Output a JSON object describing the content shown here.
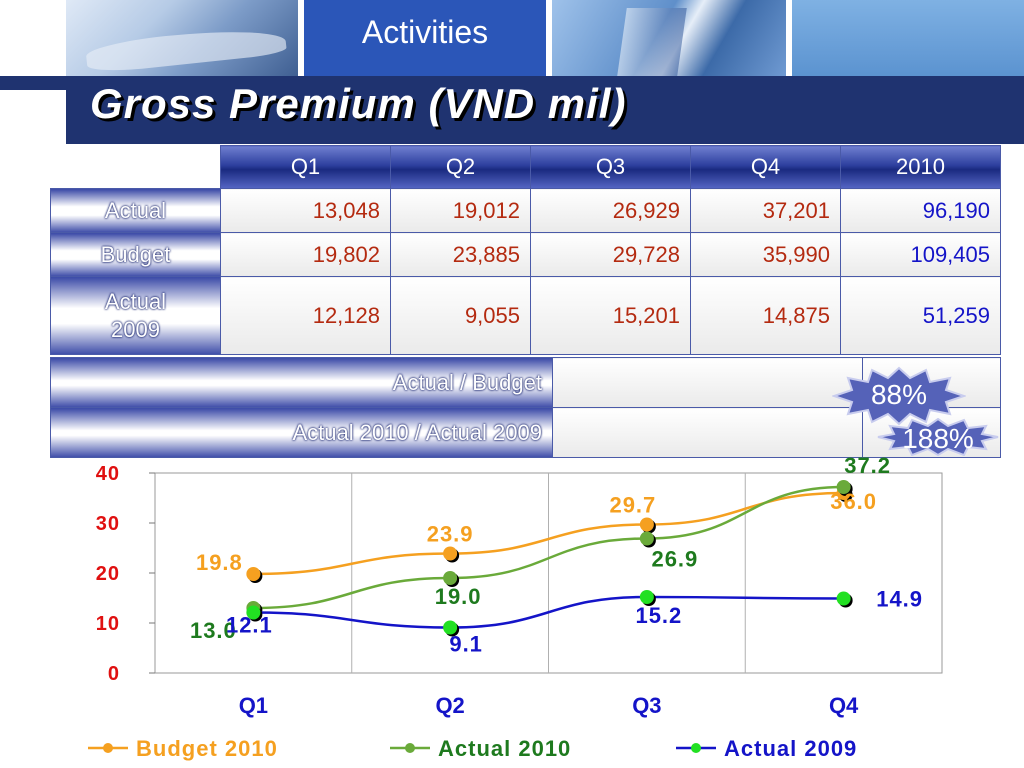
{
  "header": {
    "tab_label": "Activities",
    "title": "Gross Premium (VND mil)"
  },
  "table": {
    "columns": [
      "Q1",
      "Q2",
      "Q3",
      "Q4",
      "2010"
    ],
    "rows": [
      {
        "label": "Actual",
        "values": [
          "13,048",
          "19,012",
          "26,929",
          "37,201"
        ],
        "total": "96,190"
      },
      {
        "label": "Budget",
        "values": [
          "19,802",
          "23,885",
          "29,728",
          "35,990"
        ],
        "total": "109,405"
      },
      {
        "label": "Actual 2009",
        "values": [
          "12,128",
          "9,055",
          "15,201",
          "14,875"
        ],
        "total": "51,259"
      }
    ],
    "ratio_rows": [
      {
        "label": "Actual / Budget",
        "value": "88%"
      },
      {
        "label": "Actual 2010 / Actual 2009",
        "value": "188%"
      }
    ]
  },
  "colors": {
    "budget": "#f5a020",
    "actual2010": "#6aaa3a",
    "actual2009": "#1414c8",
    "header_blue": "#2b56b8",
    "band_navy": "#1f3370"
  },
  "chart_data": {
    "type": "line",
    "categories": [
      "Q1",
      "Q2",
      "Q3",
      "Q4"
    ],
    "ylim": [
      0,
      40
    ],
    "yticks": [
      "0",
      "10",
      "20",
      "30",
      "40"
    ],
    "grid": "vertical",
    "legend": "bottom",
    "series": [
      {
        "name": "Budget 2010",
        "values": [
          19.8,
          23.9,
          29.7,
          36.0
        ],
        "labels": [
          "19.8",
          "23.9",
          "29.7",
          "36.0"
        ],
        "color": "#f5a020",
        "label_color": "#f5a020"
      },
      {
        "name": "Actual 2010",
        "values": [
          13.0,
          19.0,
          26.9,
          37.2
        ],
        "labels": [
          "13.0",
          "19.0",
          "26.9",
          "37.2"
        ],
        "color": "#6aaa3a",
        "label_color": "#1e7a1e"
      },
      {
        "name": "Actual 2009",
        "values": [
          12.1,
          9.1,
          15.2,
          14.9
        ],
        "labels": [
          "12.1",
          "9.1",
          "15.2",
          "14.9"
        ],
        "color": "#1414c8",
        "label_color": "#1414c8"
      }
    ]
  }
}
